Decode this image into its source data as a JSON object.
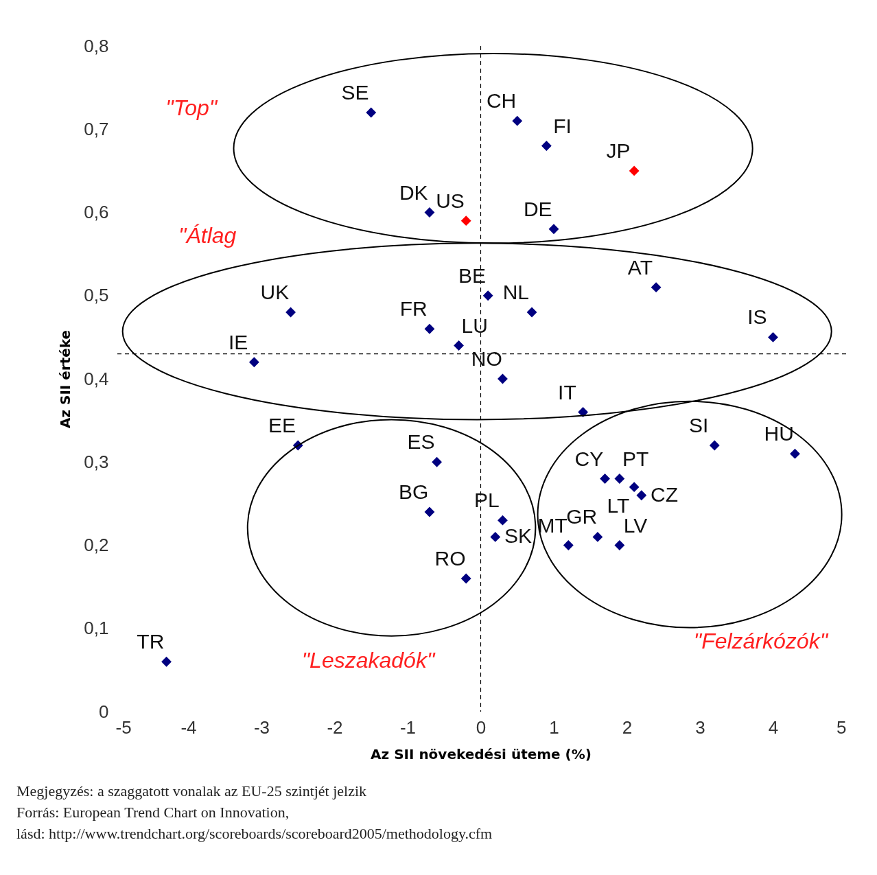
{
  "chart_data": {
    "type": "scatter",
    "xlabel": "Az SII növekedési üteme (%)",
    "ylabel": "Az SII értéke",
    "marker": "diamond",
    "x": [
      -1.5,
      0.5,
      0.9,
      2.1,
      -0.7,
      -0.2,
      1.0,
      0.1,
      2.4,
      -2.6,
      0.7,
      -0.7,
      -0.3,
      4.0,
      -3.1,
      0.3,
      1.4,
      -2.5,
      3.2,
      4.3,
      -0.6,
      1.7,
      1.9,
      2.1,
      2.2,
      -0.7,
      0.3,
      0.2,
      1.6,
      1.2,
      1.9,
      -0.2,
      -4.3
    ],
    "values": [
      0.72,
      0.71,
      0.68,
      0.65,
      0.6,
      0.59,
      0.58,
      0.5,
      0.51,
      0.48,
      0.48,
      0.46,
      0.44,
      0.45,
      0.42,
      0.4,
      0.36,
      0.32,
      0.32,
      0.31,
      0.3,
      0.28,
      0.28,
      0.27,
      0.26,
      0.24,
      0.23,
      0.21,
      0.21,
      0.2,
      0.2,
      0.16,
      0.06
    ],
    "colors": [
      "#000080",
      "#000080",
      "#000080",
      "#ff0000",
      "#000080",
      "#ff0000",
      "#000080",
      "#000080",
      "#000080",
      "#000080",
      "#000080",
      "#000080",
      "#000080",
      "#000080",
      "#000080",
      "#000080",
      "#000080",
      "#000080",
      "#000080",
      "#000080",
      "#000080",
      "#000080",
      "#000080",
      "#000080",
      "#000080",
      "#000080",
      "#000080",
      "#000080",
      "#000080",
      "#000080",
      "#000080",
      "#000080",
      "#000080"
    ],
    "xlim": [
      -5,
      5
    ],
    "xticks": [
      {
        "value": -5,
        "label": "-5"
      },
      {
        "value": -4,
        "label": "-4"
      },
      {
        "value": -3,
        "label": "-3"
      },
      {
        "value": -2,
        "label": "-2"
      },
      {
        "value": -1,
        "label": "-1"
      },
      0,
      1,
      2,
      3,
      4,
      5
    ],
    "ylim": [
      0,
      0.8
    ],
    "yticks": [
      0,
      {
        "value": 0.1,
        "label": "0,1"
      },
      {
        "value": 0.2,
        "label": "0,2"
      },
      {
        "value": 0.3,
        "label": "0,3"
      },
      {
        "value": 0.4,
        "label": "0,4"
      },
      {
        "value": 0.5,
        "label": "0,5"
      },
      {
        "value": 0.6,
        "label": "0,6"
      },
      {
        "value": 0.7,
        "label": "0,7"
      },
      {
        "value": 0.8,
        "label": "0,8"
      }
    ],
    "ref_lines": [
      {
        "axis": "x",
        "value": 0,
        "color": "#000000",
        "line_style": "dashed"
      },
      {
        "axis": "y",
        "value": 0.43,
        "color": "#000000",
        "line_style": "dashed"
      }
    ],
    "annotations": [
      "\"Top\"",
      "\"Átlag",
      "\"Leszakadók\"",
      "\"Felzárkózók\"",
      "Megjegyzés: a szaggatott vonalak az EU-25 szintjét jelzik",
      "Forrás: European Trend Chart on Innovation,",
      "lásd: http://www.trendchart.org/scoreboards/scoreboard2005/methodology.cfm",
      {
        "text": "SE",
        "x": -1.5,
        "y": 0.72
      },
      {
        "text": "CH",
        "x": 0.5,
        "y": 0.71
      },
      {
        "text": "FI",
        "x": 0.9,
        "y": 0.68
      },
      {
        "text": "JP",
        "x": 2.1,
        "y": 0.65
      },
      {
        "text": "DK",
        "x": -0.7,
        "y": 0.6
      },
      {
        "text": "US",
        "x": -0.2,
        "y": 0.59
      },
      {
        "text": "DE",
        "x": 1.0,
        "y": 0.58
      },
      {
        "text": "BE",
        "x": 0.1,
        "y": 0.5
      },
      {
        "text": "AT",
        "x": 2.4,
        "y": 0.51
      },
      {
        "text": "UK",
        "x": -2.6,
        "y": 0.48
      },
      {
        "text": "NL",
        "x": 0.7,
        "y": 0.48
      },
      {
        "text": "FR",
        "x": -0.7,
        "y": 0.46
      },
      {
        "text": "LU",
        "x": -0.3,
        "y": 0.44
      },
      {
        "text": "IS",
        "x": 4.0,
        "y": 0.45
      },
      {
        "text": "IE",
        "x": -3.1,
        "y": 0.42
      },
      {
        "text": "NO",
        "x": 0.3,
        "y": 0.4
      },
      {
        "text": "IT",
        "x": 1.4,
        "y": 0.36
      },
      {
        "text": "EE",
        "x": -2.5,
        "y": 0.32
      },
      {
        "text": "SI",
        "x": 3.2,
        "y": 0.32
      },
      {
        "text": "HU",
        "x": 4.3,
        "y": 0.31
      },
      {
        "text": "ES",
        "x": -0.6,
        "y": 0.3
      },
      {
        "text": "CY",
        "x": 1.7,
        "y": 0.28
      },
      {
        "text": "PT",
        "x": 1.9,
        "y": 0.28
      },
      {
        "text": "LT",
        "x": 2.1,
        "y": 0.27
      },
      {
        "text": "CZ",
        "x": 2.2,
        "y": 0.26
      },
      {
        "text": "BG",
        "x": -0.7,
        "y": 0.24
      },
      {
        "text": "PL",
        "x": 0.3,
        "y": 0.23
      },
      {
        "text": "SK",
        "x": 0.2,
        "y": 0.21
      },
      {
        "text": "GR",
        "x": 1.6,
        "y": 0.21
      },
      {
        "text": "MT",
        "x": 1.2,
        "y": 0.2
      },
      {
        "text": "LV",
        "x": 1.9,
        "y": 0.2
      },
      {
        "text": "RO",
        "x": -0.2,
        "y": 0.16
      },
      {
        "text": "TR",
        "x": -4.3,
        "y": 0.06
      }
    ]
  }
}
